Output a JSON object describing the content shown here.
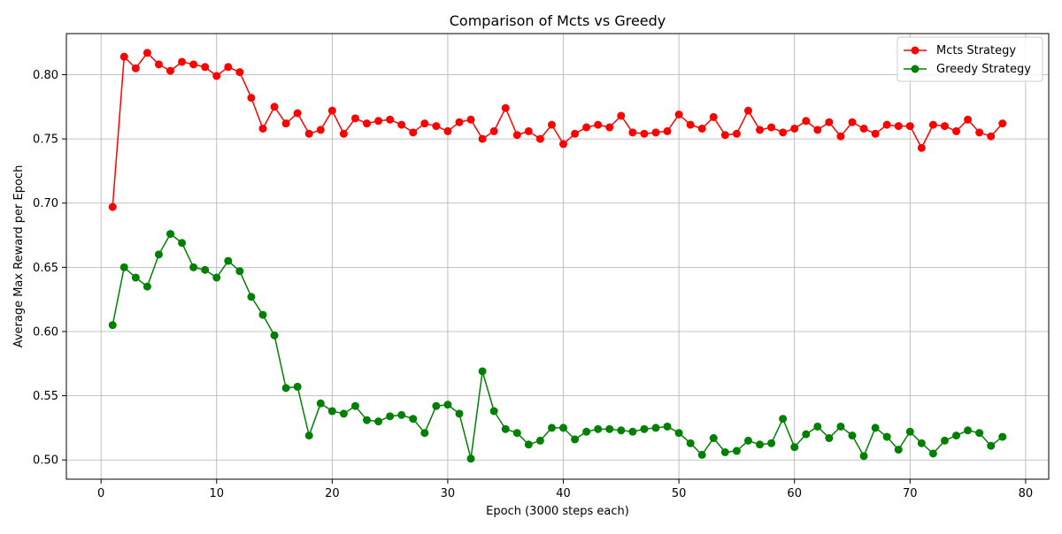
{
  "chart_data": {
    "type": "line",
    "title": "Comparison of Mcts vs Greedy",
    "xlabel": "Epoch (3000 steps each)",
    "ylabel": "Average Max Reward per Epoch",
    "xlim": [
      -3,
      82
    ],
    "ylim": [
      0.485,
      0.832
    ],
    "xticks": [
      0,
      10,
      20,
      30,
      40,
      50,
      60,
      70,
      80
    ],
    "yticks": [
      0.5,
      0.55,
      0.6,
      0.65,
      0.7,
      0.75,
      0.8
    ],
    "ytick_labels": [
      "0.50",
      "0.55",
      "0.60",
      "0.65",
      "0.70",
      "0.75",
      "0.80"
    ],
    "grid": true,
    "legend_position": "top-right",
    "x": [
      1,
      2,
      3,
      4,
      5,
      6,
      7,
      8,
      9,
      10,
      11,
      12,
      13,
      14,
      15,
      16,
      17,
      18,
      19,
      20,
      21,
      22,
      23,
      24,
      25,
      26,
      27,
      28,
      29,
      30,
      31,
      32,
      33,
      34,
      35,
      36,
      37,
      38,
      39,
      40,
      41,
      42,
      43,
      44,
      45,
      46,
      47,
      48,
      49,
      50,
      51,
      52,
      53,
      54,
      55,
      56,
      57,
      58,
      59,
      60,
      61,
      62,
      63,
      64,
      65,
      66,
      67,
      68,
      69,
      70,
      71,
      72,
      73,
      74,
      75,
      76,
      77,
      78
    ],
    "series": [
      {
        "name": "Mcts Strategy",
        "color": "#ff0000",
        "values": [
          0.697,
          0.814,
          0.805,
          0.817,
          0.808,
          0.803,
          0.81,
          0.808,
          0.806,
          0.799,
          0.806,
          0.802,
          0.782,
          0.758,
          0.775,
          0.762,
          0.77,
          0.754,
          0.757,
          0.772,
          0.754,
          0.766,
          0.762,
          0.764,
          0.765,
          0.761,
          0.755,
          0.762,
          0.76,
          0.756,
          0.763,
          0.765,
          0.75,
          0.756,
          0.774,
          0.753,
          0.756,
          0.75,
          0.761,
          0.746,
          0.754,
          0.759,
          0.761,
          0.759,
          0.768,
          0.755,
          0.754,
          0.755,
          0.756,
          0.769,
          0.761,
          0.758,
          0.767,
          0.753,
          0.754,
          0.772,
          0.757,
          0.759,
          0.755,
          0.758,
          0.764,
          0.757,
          0.763,
          0.752,
          0.763,
          0.758,
          0.754,
          0.761,
          0.76,
          0.76,
          0.743,
          0.761,
          0.76,
          0.756,
          0.765,
          0.755,
          0.752,
          0.762
        ]
      },
      {
        "name": "Greedy Strategy",
        "color": "#008000",
        "values": [
          0.605,
          0.65,
          0.642,
          0.635,
          0.66,
          0.676,
          0.669,
          0.65,
          0.648,
          0.642,
          0.655,
          0.647,
          0.627,
          0.613,
          0.597,
          0.556,
          0.557,
          0.519,
          0.544,
          0.538,
          0.536,
          0.542,
          0.531,
          0.53,
          0.534,
          0.535,
          0.532,
          0.521,
          0.542,
          0.543,
          0.536,
          0.501,
          0.569,
          0.538,
          0.524,
          0.521,
          0.512,
          0.515,
          0.525,
          0.525,
          0.516,
          0.522,
          0.524,
          0.524,
          0.523,
          0.522,
          0.524,
          0.525,
          0.526,
          0.521,
          0.513,
          0.504,
          0.517,
          0.506,
          0.507,
          0.515,
          0.512,
          0.513,
          0.532,
          0.51,
          0.52,
          0.526,
          0.517,
          0.526,
          0.519,
          0.503,
          0.525,
          0.518,
          0.508,
          0.522,
          0.513,
          0.505,
          0.515,
          0.519,
          0.523,
          0.521,
          0.511,
          0.518
        ]
      }
    ]
  }
}
